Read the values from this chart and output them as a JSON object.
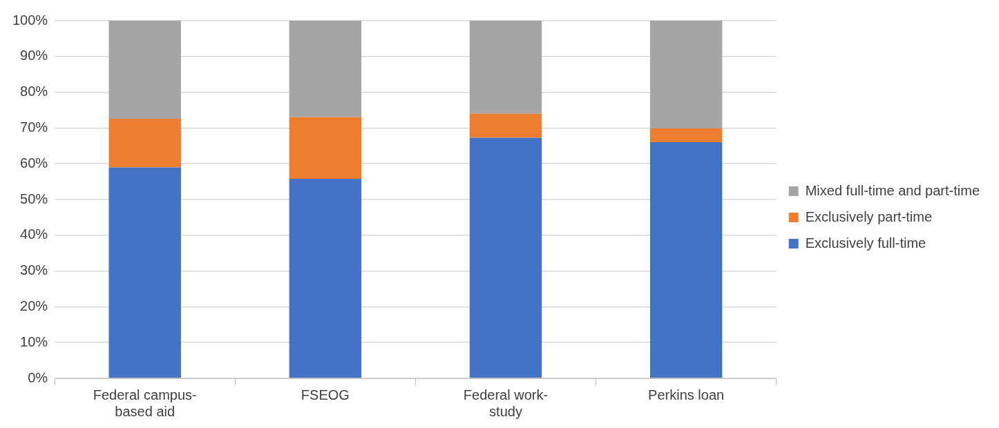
{
  "chart_data": {
    "type": "bar",
    "stacked": true,
    "categories": [
      "Federal campus-based aid",
      "FSEOG",
      "Federal work-study",
      "Perkins loan"
    ],
    "series": [
      {
        "name": "Exclusively full-time",
        "color": "#4472c4",
        "values": [
          59.0,
          55.8,
          67.3,
          66.0
        ]
      },
      {
        "name": "Exclusively part-time",
        "color": "#ed7d31",
        "values": [
          13.6,
          17.2,
          6.7,
          3.9
        ]
      },
      {
        "name": "Mixed full-time and part-time",
        "color": "#a5a5a5",
        "values": [
          27.4,
          27.0,
          26.0,
          30.1
        ]
      }
    ],
    "ylim": [
      0,
      100
    ],
    "yticks": [
      {
        "value": 0,
        "label": "0%"
      },
      {
        "value": 10,
        "label": "10%"
      },
      {
        "value": 20,
        "label": "20%"
      },
      {
        "value": 30,
        "label": "30%"
      },
      {
        "value": 40,
        "label": "40%"
      },
      {
        "value": 50,
        "label": "50%"
      },
      {
        "value": 60,
        "label": "60%"
      },
      {
        "value": 70,
        "label": "70%"
      },
      {
        "value": 80,
        "label": "80%"
      },
      {
        "value": 90,
        "label": "90%"
      },
      {
        "value": 100,
        "label": "100%"
      }
    ],
    "grid": "y",
    "legend": "right"
  }
}
